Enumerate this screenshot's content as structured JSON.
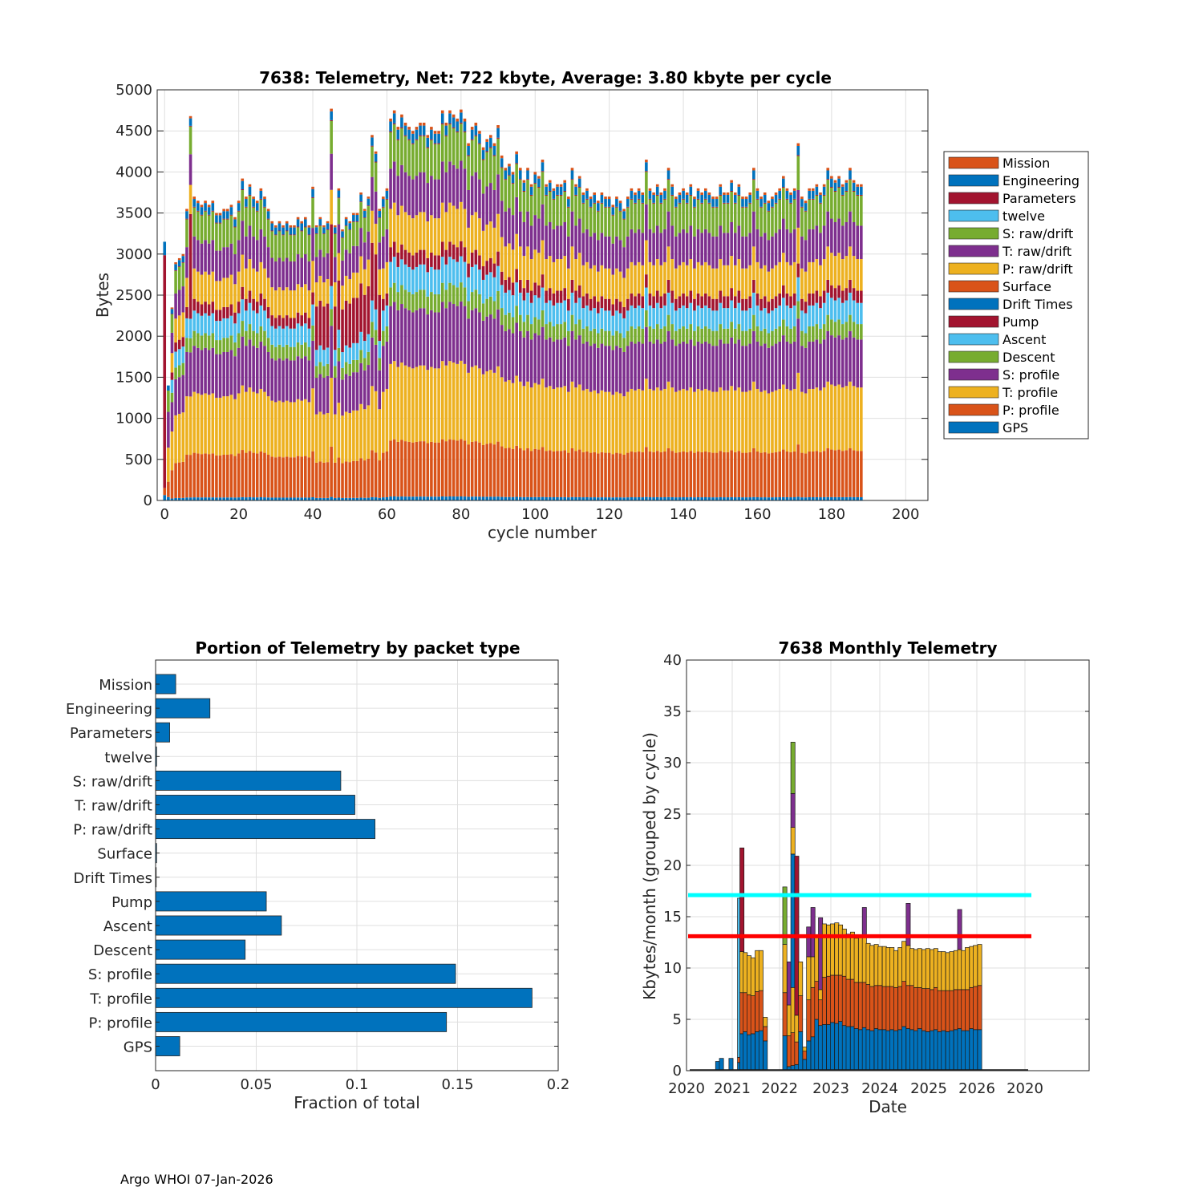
{
  "footer": "Argo WHOI 07-Jan-2026",
  "colors": {
    "blue": "#0072BD",
    "orange": "#D95319",
    "yellow": "#EDB120",
    "purple": "#7E2F8E",
    "green": "#77AC30",
    "cyan": "#4DBEEE",
    "darkred": "#A2142F",
    "cyan_line": "#00FFFF",
    "red_line": "#FF0000",
    "grid": "#dfdfdf"
  },
  "chart_data": [
    {
      "id": "cycle-telemetry",
      "type": "bar",
      "stacked": true,
      "title": "7638: Telemetry, Net:    722 kbyte,  Average: 3.80 kbyte per cycle",
      "xlabel": "cycle number",
      "ylabel": "Bytes",
      "xlim": [
        -2,
        206
      ],
      "ylim": [
        0,
        5000
      ],
      "xticks": [
        "0",
        "20",
        "40",
        "60",
        "80",
        "100",
        "120",
        "140",
        "160",
        "180",
        "200"
      ],
      "yticks": [
        "0",
        "500",
        "1000",
        "1500",
        "2000",
        "2500",
        "3000",
        "3500",
        "4000",
        "4500",
        "5000"
      ],
      "n_cycles": 189,
      "legend_position": "right",
      "legend": [
        "Mission",
        "Engineering",
        "Parameters",
        "twelve",
        "S: raw/drift",
        "T: raw/drift",
        "P: raw/drift",
        "Surface",
        "Drift Times",
        "Pump",
        "Ascent",
        "Descent",
        "S: profile",
        "T: profile",
        "P: profile",
        "GPS"
      ],
      "stack_order": [
        "GPS",
        "P: profile",
        "T: profile",
        "S: profile",
        "Descent",
        "Ascent",
        "Pump",
        "Drift Times",
        "Surface",
        "P: raw/drift",
        "T: raw/drift",
        "S: raw/drift",
        "twelve",
        "Parameters",
        "Engineering",
        "Mission"
      ],
      "series_colors": {
        "Mission": "#D95319",
        "Engineering": "#0072BD",
        "Parameters": "#A2142F",
        "twelve": "#4DBEEE",
        "S: raw/drift": "#77AC30",
        "T: raw/drift": "#7E2F8E",
        "P: raw/drift": "#EDB120",
        "Surface": "#D95319",
        "Drift Times": "#0072BD",
        "Pump": "#A2142F",
        "Ascent": "#4DBEEE",
        "Descent": "#77AC30",
        "S: profile": "#7E2F8E",
        "T: profile": "#EDB120",
        "P: profile": "#D95319",
        "GPS": "#0072BD"
      },
      "typical_cycle_bytes": {
        "GPS": 40,
        "P: profile": 570,
        "T: profile": 780,
        "S: profile": 590,
        "Descent": 190,
        "Ascent": 260,
        "Pump": 150,
        "Drift Times": 0,
        "Surface": 0,
        "P: raw/drift": 390,
        "T: raw/drift": 410,
        "S: raw/drift": 370,
        "twelve": 0,
        "Parameters": 10,
        "Engineering": 100,
        "Mission": 30
      },
      "total_bytes_per_cycle": [
        3150,
        1400,
        2350,
        2900,
        2950,
        3000,
        3550,
        4680,
        3700,
        3650,
        3600,
        3650,
        3600,
        3650,
        3500,
        3500,
        3550,
        3550,
        3600,
        3450,
        3650,
        3920,
        3700,
        3850,
        3700,
        3650,
        3800,
        3700,
        3550,
        3400,
        3350,
        3400,
        3350,
        3400,
        3350,
        3350,
        3450,
        3400,
        3450,
        3350,
        3820,
        3350,
        3450,
        3350,
        3400,
        4770,
        3350,
        3800,
        3300,
        3450,
        3400,
        3500,
        3500,
        3750,
        3550,
        3700,
        4450,
        4250,
        3550,
        3700,
        3800,
        4650,
        4750,
        4550,
        4700,
        4600,
        4550,
        4500,
        4550,
        4600,
        4600,
        4450,
        4550,
        4500,
        4500,
        4750,
        4600,
        4750,
        4700,
        4650,
        4760,
        4650,
        4350,
        4550,
        4600,
        4500,
        4300,
        4400,
        4450,
        4350,
        4570,
        4200,
        4050,
        4100,
        4000,
        4250,
        4050,
        3900,
        4050,
        3850,
        4000,
        3950,
        4150,
        3850,
        3900,
        3800,
        3850,
        3850,
        3900,
        3700,
        4050,
        3850,
        3950,
        3750,
        3800,
        3700,
        3750,
        3650,
        3750,
        3700,
        3700,
        3600,
        3700,
        3650,
        3550,
        3700,
        3800,
        3750,
        3800,
        3750,
        4150,
        3800,
        3750,
        3850,
        3750,
        3800,
        4050,
        3850,
        3700,
        3750,
        3800,
        3750,
        3850,
        3700,
        3800,
        3750,
        3800,
        3750,
        3700,
        3700,
        3850,
        3750,
        3750,
        3900,
        3750,
        3850,
        3700,
        3700,
        3750,
        4050,
        3800,
        3700,
        3750,
        3650,
        3700,
        3750,
        3800,
        3950,
        3800,
        3750,
        3800,
        4350,
        3700,
        3650,
        3800,
        3800,
        3850,
        3750,
        3850,
        4050,
        3950,
        3900,
        3950,
        3850,
        3900,
        4050,
        3900,
        3850,
        3850
      ]
    },
    {
      "id": "packet-portion",
      "type": "bar",
      "orientation": "horizontal",
      "title": "Portion of Telemetry by packet type",
      "xlabel": "Fraction of total",
      "ylabel": "",
      "xlim": [
        0,
        0.2
      ],
      "xticks": [
        "0",
        "0.05",
        "0.1",
        "0.15",
        "0.2"
      ],
      "categories": [
        "Mission",
        "Engineering",
        "Parameters",
        "twelve",
        "S: raw/drift",
        "T: raw/drift",
        "P: raw/drift",
        "Surface",
        "Drift Times",
        "Pump",
        "Ascent",
        "Descent",
        "S: profile",
        "T: profile",
        "P: profile",
        "GPS"
      ],
      "values": [
        0.01,
        0.027,
        0.007,
        0.0005,
        0.092,
        0.099,
        0.109,
        0.0005,
        0.0003,
        0.055,
        0.0625,
        0.0445,
        0.149,
        0.187,
        0.1445,
        0.012
      ],
      "color": "#0072BD"
    },
    {
      "id": "monthly-telemetry",
      "type": "bar",
      "stacked": true,
      "title": "7638 Monthly Telemetry",
      "xlabel": "Date",
      "ylabel": "Kbytes/month (grouped by cycle)",
      "ylim": [
        0,
        40
      ],
      "yticks": [
        "0",
        "5",
        "10",
        "15",
        "20",
        "25",
        "30",
        "35",
        "40"
      ],
      "xticks": [
        "2020",
        "2021",
        "2022",
        "2023",
        "2024",
        "2025",
        "2026",
        "2020"
      ],
      "reference_lines": [
        {
          "name": "cyan line",
          "y": 17.1,
          "color": "#00FFFF"
        },
        {
          "name": "red line",
          "y": 13.1,
          "color": "#FF0000"
        }
      ],
      "segments_bottom_to_top": [
        "GPS+profile P",
        "P profile",
        "T profile",
        "other"
      ],
      "bars": [
        {
          "t": 2020.62,
          "blue": 0.9
        },
        {
          "t": 2020.7,
          "blue": 1.2
        },
        {
          "t": 2020.9,
          "blue": 1.2
        },
        {
          "t": 2021.08,
          "blue": 0.8,
          "orange": 0.5,
          "cyan": 15.5
        },
        {
          "t": 2021.13,
          "blue": 3.6,
          "orange": 4.0,
          "yellow": 4.0,
          "darkred": 10.1
        },
        {
          "t": 2021.2,
          "blue": 3.8,
          "orange": 3.8,
          "yellow": 3.9
        },
        {
          "t": 2021.28,
          "blue": 3.5,
          "orange": 3.9,
          "yellow": 3.8
        },
        {
          "t": 2021.36,
          "blue": 3.6,
          "orange": 3.7,
          "yellow": 3.7
        },
        {
          "t": 2021.45,
          "blue": 3.8,
          "orange": 3.9,
          "yellow": 4.0
        },
        {
          "t": 2021.53,
          "blue": 3.9,
          "orange": 3.9,
          "yellow": 3.9
        },
        {
          "t": 2021.62,
          "blue": 2.9,
          "orange": 1.4,
          "yellow": 0.9
        },
        {
          "t": 2022.03,
          "blue": 3.4,
          "orange": 4.2,
          "yellow": 4.7,
          "green": 5.6
        },
        {
          "t": 2022.12,
          "blue": 0.4,
          "orange": 3.0,
          "yellow": 3.0,
          "purple": 4.2
        },
        {
          "t": 2022.2,
          "blue": 0.5,
          "orange": 3.2,
          "yellow": 4.4,
          "blue2": 13.0,
          "yellow2": 2.6,
          "purple": 3.3,
          "green": 5.0
        },
        {
          "t": 2022.28,
          "blue": 0.6,
          "orange": 2.2,
          "yellow": 2.6,
          "darkred": 15.5
        },
        {
          "t": 2022.36,
          "blue": 3.8,
          "orange": 3.5,
          "yellow": 3.3
        },
        {
          "t": 2022.45,
          "blue": 1.1,
          "orange": 0.8,
          "yellow": 0.4
        },
        {
          "t": 2022.53,
          "blue": 2.9,
          "orange": 4.0,
          "yellow": 4.2,
          "purple": 2.9
        },
        {
          "t": 2022.62,
          "blue": 3.3,
          "orange": 4.8,
          "yellow": 3.0,
          "purple": 4.8
        },
        {
          "t": 2022.7,
          "blue": 5.0,
          "orange": 3.7,
          "yellow": 4.5
        },
        {
          "t": 2022.78,
          "blue": 4.4,
          "orange": 2.5,
          "yellow": 1.0,
          "purple": 7.0
        },
        {
          "t": 2022.86,
          "blue": 4.5,
          "orange": 4.6,
          "yellow": 5.2
        },
        {
          "t": 2022.95,
          "blue": 4.5,
          "orange": 4.7,
          "yellow": 5.0
        },
        {
          "t": 2023.03,
          "blue": 4.7,
          "orange": 4.6,
          "yellow": 5.0
        },
        {
          "t": 2023.12,
          "blue": 4.6,
          "orange": 4.7,
          "yellow": 5.1
        },
        {
          "t": 2023.2,
          "blue": 4.8,
          "orange": 4.5,
          "yellow": 4.9
        },
        {
          "t": 2023.28,
          "blue": 4.4,
          "orange": 4.8,
          "yellow": 4.6
        },
        {
          "t": 2023.36,
          "blue": 4.3,
          "orange": 4.6,
          "yellow": 4.4
        },
        {
          "t": 2023.45,
          "blue": 4.3,
          "orange": 4.6,
          "yellow": 4.6
        },
        {
          "t": 2023.53,
          "blue": 4.1,
          "orange": 4.5,
          "yellow": 4.3
        },
        {
          "t": 2023.62,
          "blue": 4.0,
          "orange": 4.6,
          "yellow": 4.4
        },
        {
          "t": 2023.7,
          "blue": 4.2,
          "orange": 4.4,
          "yellow": 4.5,
          "purple": 2.8
        },
        {
          "t": 2023.78,
          "blue": 4.0,
          "orange": 4.4,
          "yellow": 4.0
        },
        {
          "t": 2023.86,
          "blue": 3.9,
          "orange": 4.3,
          "yellow": 4.0
        },
        {
          "t": 2023.95,
          "blue": 4.1,
          "orange": 4.2,
          "yellow": 4.0
        },
        {
          "t": 2024.03,
          "blue": 4.0,
          "orange": 4.3,
          "yellow": 3.8
        },
        {
          "t": 2024.12,
          "blue": 4.0,
          "orange": 4.2,
          "yellow": 3.9
        },
        {
          "t": 2024.2,
          "blue": 3.9,
          "orange": 4.3,
          "yellow": 3.8
        },
        {
          "t": 2024.28,
          "blue": 4.0,
          "orange": 4.2,
          "yellow": 3.8
        },
        {
          "t": 2024.36,
          "blue": 3.9,
          "orange": 4.2,
          "yellow": 3.6
        },
        {
          "t": 2024.45,
          "blue": 4.0,
          "orange": 4.2,
          "yellow": 3.8
        },
        {
          "t": 2024.53,
          "blue": 4.3,
          "orange": 4.4,
          "yellow": 3.9
        },
        {
          "t": 2024.62,
          "blue": 4.1,
          "orange": 4.2,
          "yellow": 3.9,
          "purple": 4.1
        },
        {
          "t": 2024.7,
          "blue": 4.0,
          "orange": 4.3,
          "yellow": 3.6
        },
        {
          "t": 2024.78,
          "blue": 3.9,
          "orange": 4.2,
          "yellow": 3.7
        },
        {
          "t": 2024.86,
          "blue": 4.1,
          "orange": 4.0,
          "yellow": 3.8
        },
        {
          "t": 2024.95,
          "blue": 3.9,
          "orange": 4.1,
          "yellow": 3.8
        },
        {
          "t": 2025.03,
          "blue": 3.8,
          "orange": 4.2,
          "yellow": 3.9
        },
        {
          "t": 2025.12,
          "blue": 3.9,
          "orange": 4.0,
          "yellow": 3.9
        },
        {
          "t": 2025.2,
          "blue": 4.0,
          "orange": 4.1,
          "yellow": 3.8
        },
        {
          "t": 2025.28,
          "blue": 3.8,
          "orange": 4.0,
          "yellow": 3.8
        },
        {
          "t": 2025.36,
          "blue": 3.9,
          "orange": 3.9,
          "yellow": 3.8
        },
        {
          "t": 2025.45,
          "blue": 3.8,
          "orange": 4.0,
          "yellow": 3.7
        },
        {
          "t": 2025.53,
          "blue": 3.9,
          "orange": 3.9,
          "yellow": 3.8
        },
        {
          "t": 2025.62,
          "blue": 4.0,
          "orange": 3.9,
          "yellow": 3.8
        },
        {
          "t": 2025.7,
          "blue": 4.1,
          "orange": 3.8,
          "yellow": 3.9,
          "purple": 3.9
        },
        {
          "t": 2025.78,
          "blue": 3.9,
          "orange": 4.0,
          "yellow": 3.8
        },
        {
          "t": 2025.86,
          "blue": 3.9,
          "orange": 4.0,
          "yellow": 4.1
        },
        {
          "t": 2025.95,
          "blue": 4.1,
          "orange": 4.0,
          "yellow": 4.0
        },
        {
          "t": 2026.03,
          "blue": 4.0,
          "orange": 4.2,
          "yellow": 4.0
        },
        {
          "t": 2026.12,
          "blue": 4.0,
          "orange": 4.3,
          "yellow": 4.0
        }
      ]
    }
  ]
}
